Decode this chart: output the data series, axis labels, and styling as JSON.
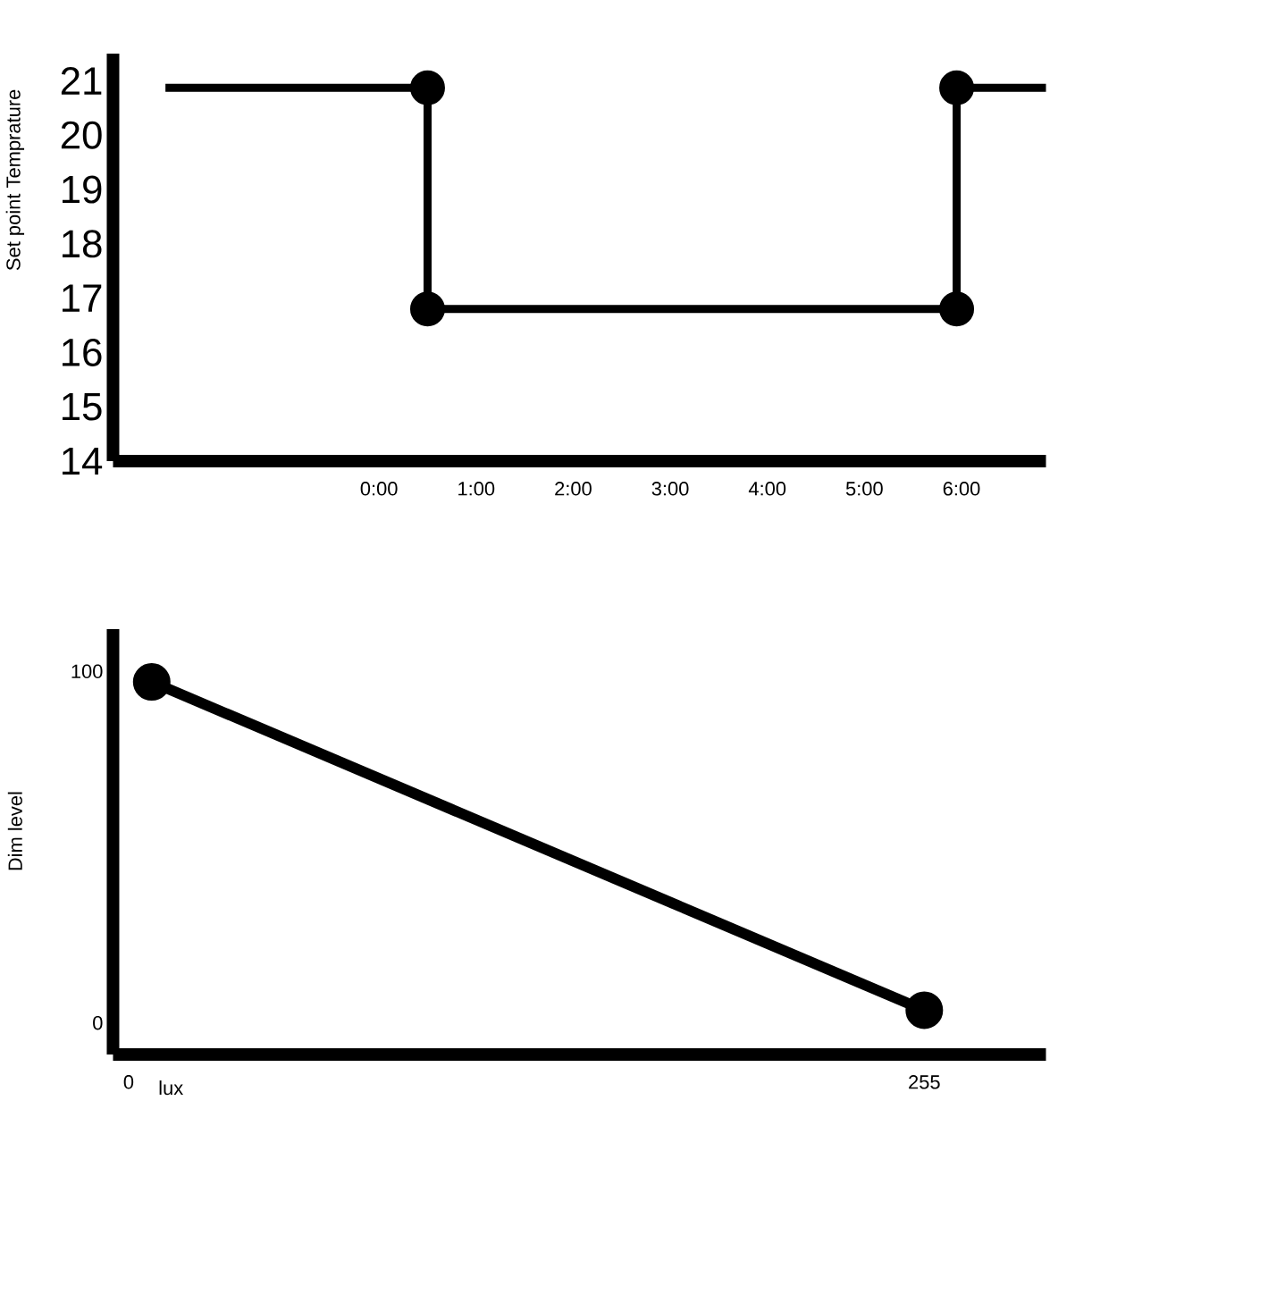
{
  "chart_data": [
    {
      "type": "line",
      "ylabel": "Set point Temprature",
      "xlim": [
        -2.74,
        6.87
      ],
      "ylim": [
        14,
        21.5
      ],
      "xticks": [
        {
          "value": 0,
          "label": "0:00"
        },
        {
          "value": 1,
          "label": "1:00"
        },
        {
          "value": 2,
          "label": "2:00"
        },
        {
          "value": 3,
          "label": "3:00"
        },
        {
          "value": 4,
          "label": "4:00"
        },
        {
          "value": 5,
          "label": "5:00"
        },
        {
          "value": 6,
          "label": "6:00"
        }
      ],
      "yticks": [
        14,
        15,
        16,
        17,
        18,
        19,
        20,
        21
      ],
      "series": [
        {
          "type": "line",
          "marker": "none",
          "color": "#000000",
          "x": [
            -2.2,
            0.5,
            0.5,
            5.95,
            5.95,
            6.87
          ],
          "values": [
            20.87,
            20.87,
            16.8,
            16.8,
            20.87,
            20.87
          ]
        },
        {
          "type": "scatter",
          "marker": "circle",
          "color": "#000000",
          "x": [
            0.5,
            0.5,
            5.95,
            5.95
          ],
          "values": [
            20.87,
            16.8,
            16.8,
            20.87
          ]
        }
      ]
    },
    {
      "type": "line",
      "xlabel": "lux",
      "ylabel": "Dim level",
      "xlim": [
        -5,
        294
      ],
      "ylim": [
        -9,
        112
      ],
      "xticks": [
        0,
        255
      ],
      "yticks": [
        0,
        100
      ],
      "marker": "circle",
      "series": [
        {
          "color": "#000000",
          "x": [
            7.4,
            255
          ],
          "values": [
            97,
            3.6
          ]
        }
      ]
    }
  ]
}
